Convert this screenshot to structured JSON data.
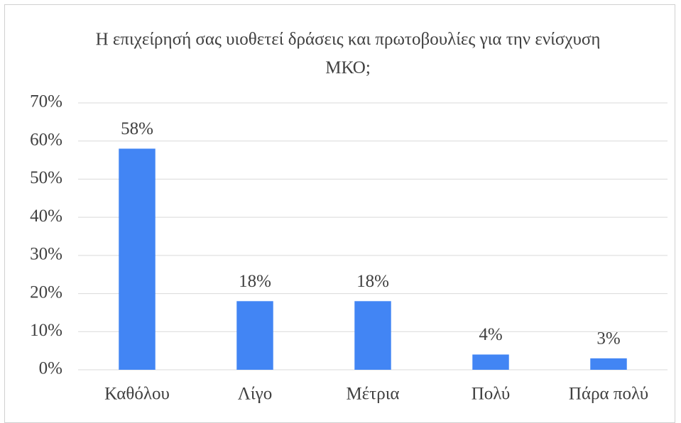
{
  "chart_data": {
    "type": "bar",
    "title": "Η επιχείρησή σας υιοθετεί δράσεις και πρωτοβουλίες για την ενίσχυση ΜΚΟ;",
    "categories": [
      "Καθόλου",
      "Λίγο",
      "Μέτρια",
      "Πολύ",
      "Πάρα πολύ"
    ],
    "values": [
      58,
      18,
      18,
      4,
      3
    ],
    "value_labels": [
      "58%",
      "18%",
      "18%",
      "4%",
      "3%"
    ],
    "color": "#4285f4",
    "ylim": [
      0,
      70
    ],
    "yticks": [
      {
        "value": 0,
        "label": "0%"
      },
      {
        "value": 10,
        "label": "10%"
      },
      {
        "value": 20,
        "label": "20%"
      },
      {
        "value": 30,
        "label": "30%"
      },
      {
        "value": 40,
        "label": "40%"
      },
      {
        "value": 50,
        "label": "50%"
      },
      {
        "value": 60,
        "label": "60%"
      },
      {
        "value": 70,
        "label": "70%"
      }
    ],
    "grid": true
  }
}
